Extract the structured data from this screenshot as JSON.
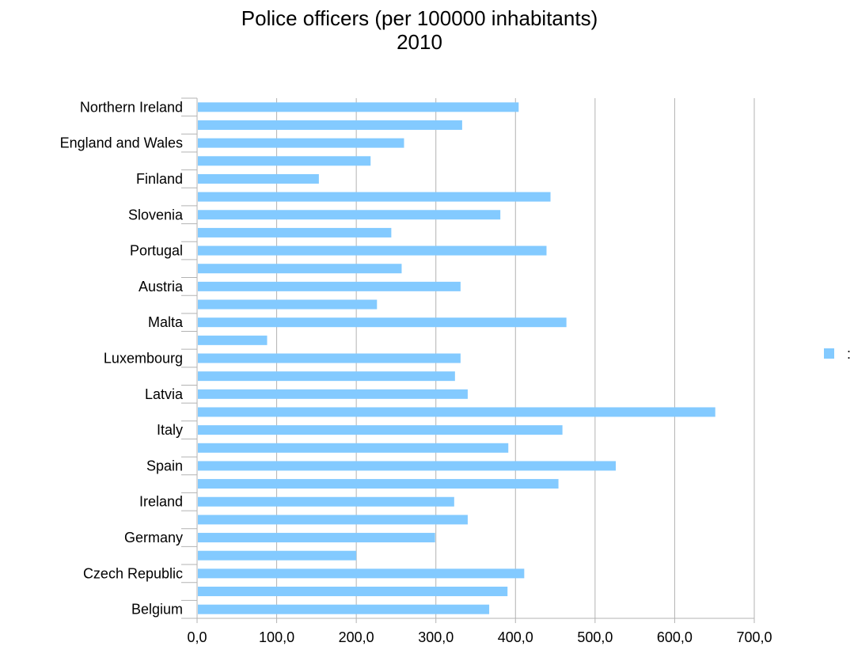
{
  "title": "Police officers (per 100000 inhabitants)",
  "subtitle": "2010",
  "colors": {
    "bar": "#83caff",
    "grid": "#b3b3b3",
    "axis": "#b3b3b3"
  },
  "legend": {
    "label": ":",
    "placement": "right"
  },
  "chart_data": {
    "type": "bar",
    "orientation": "horizontal",
    "title": "Police officers (per 100000 inhabitants)",
    "subtitle": "2010",
    "xlabel": "",
    "ylabel": "",
    "xlim": [
      0,
      700
    ],
    "xticks": [
      "0,0",
      "100,0",
      "200,0",
      "300,0",
      "400,0",
      "500,0",
      "600,0",
      "700,0"
    ],
    "grid": true,
    "categories": [
      "Belgium",
      "",
      "Czech Republic",
      "",
      "Germany",
      "",
      "Ireland",
      "",
      "Spain",
      "",
      "Italy",
      "",
      "Latvia",
      "",
      "Luxembourg",
      "",
      "Malta",
      "",
      "Austria",
      "",
      "Portugal",
      "",
      "Slovenia",
      "",
      "Finland",
      "",
      "England and Wales",
      "",
      "Northern Ireland"
    ],
    "series": [
      {
        "name": ":",
        "values": [
          367,
          390,
          411,
          200,
          299,
          340,
          323,
          454,
          526,
          391,
          459,
          651,
          340,
          324,
          331,
          88,
          464,
          226,
          331,
          257,
          439,
          244,
          381,
          444,
          153,
          218,
          260,
          333,
          404
        ]
      }
    ]
  }
}
